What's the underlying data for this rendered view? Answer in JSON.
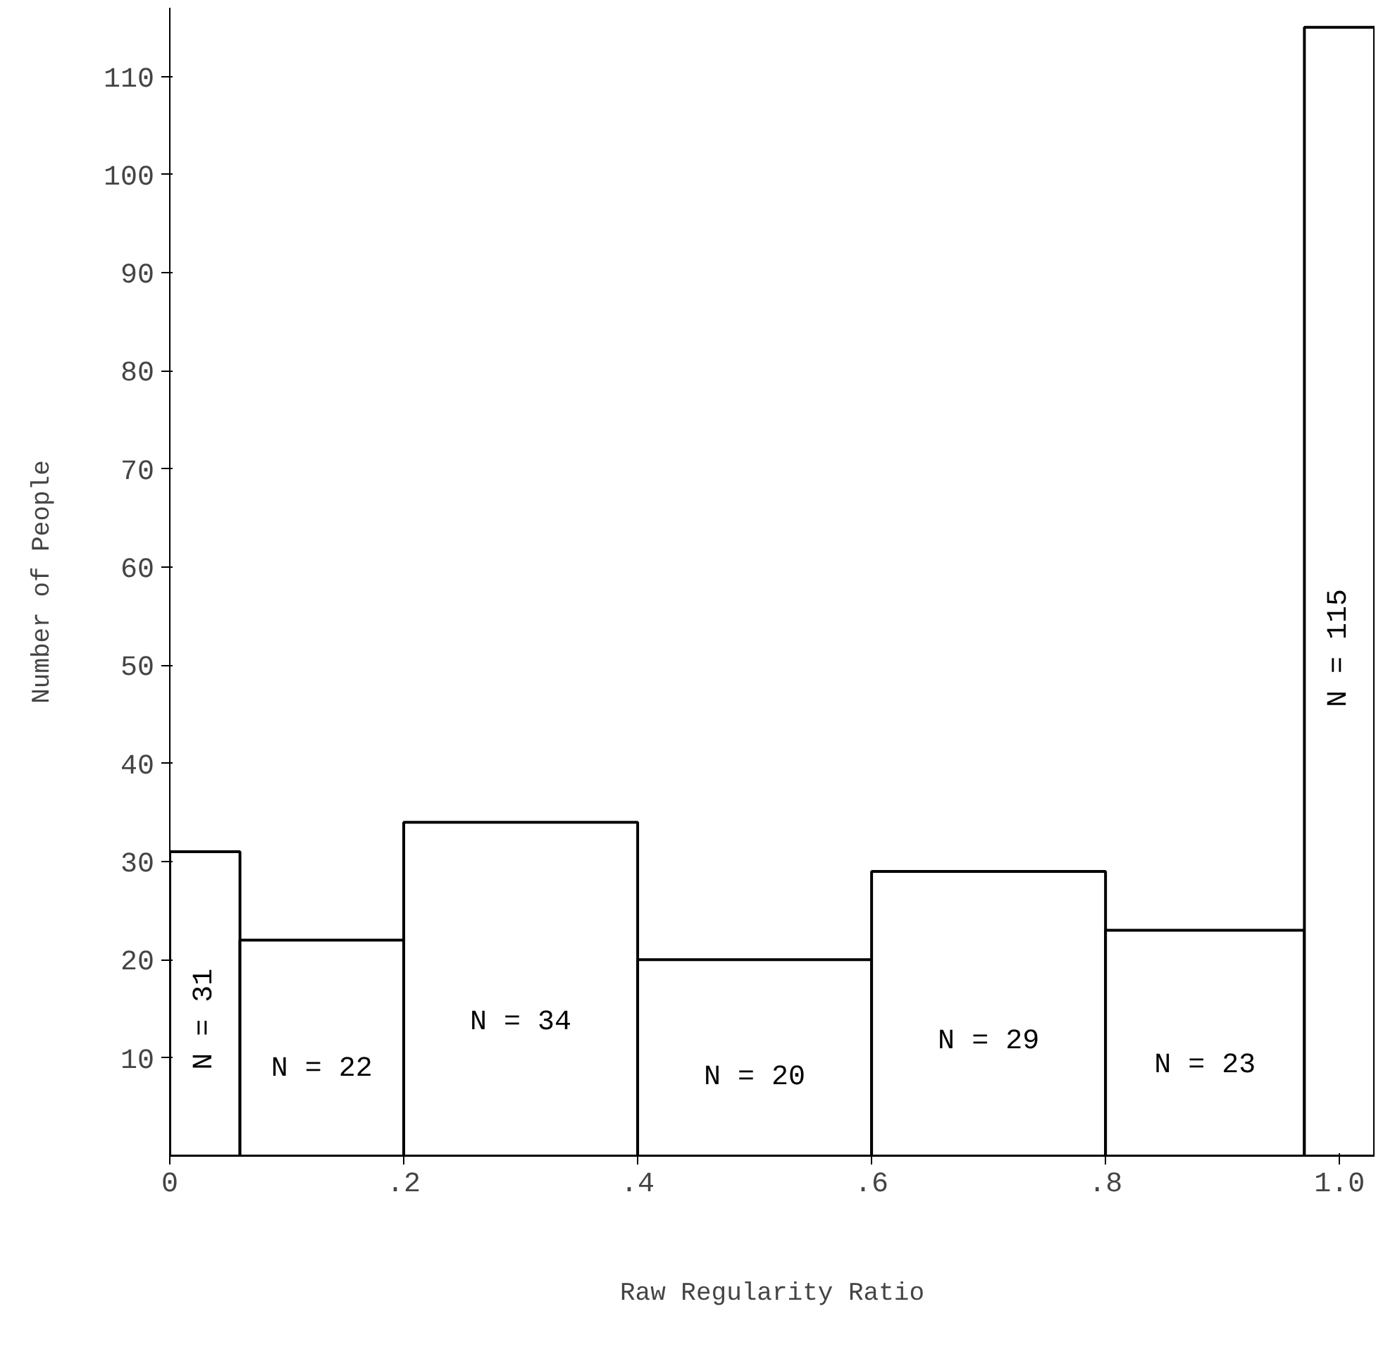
{
  "chart_data": {
    "type": "histogram",
    "xlabel": "Raw Regularity Ratio",
    "ylabel": "Number of People",
    "bins": [
      0,
      0.06,
      0.2,
      0.4,
      0.6,
      0.8,
      0.97,
      1.03
    ],
    "values": [
      31,
      22,
      34,
      20,
      29,
      23,
      115
    ],
    "value_labels": [
      "N = 31",
      "N = 22",
      "N = 34",
      "N = 20",
      "N = 29",
      "N = 23",
      "N = 115"
    ],
    "color": "#ffffff",
    "xlim": [
      0,
      1.03
    ],
    "ylim": [
      0,
      117
    ],
    "xticks": [
      0,
      {
        "value": 0.2,
        "label": ".2"
      },
      {
        "value": 0.4,
        "label": ".4"
      },
      {
        "value": 0.6,
        "label": ".6"
      },
      {
        "value": 0.8,
        "label": ".8"
      },
      {
        "value": 1.0,
        "label": "1.0"
      }
    ],
    "yticks": [
      10,
      20,
      30,
      40,
      50,
      60,
      70,
      80,
      90,
      100,
      110
    ],
    "grid": false
  }
}
